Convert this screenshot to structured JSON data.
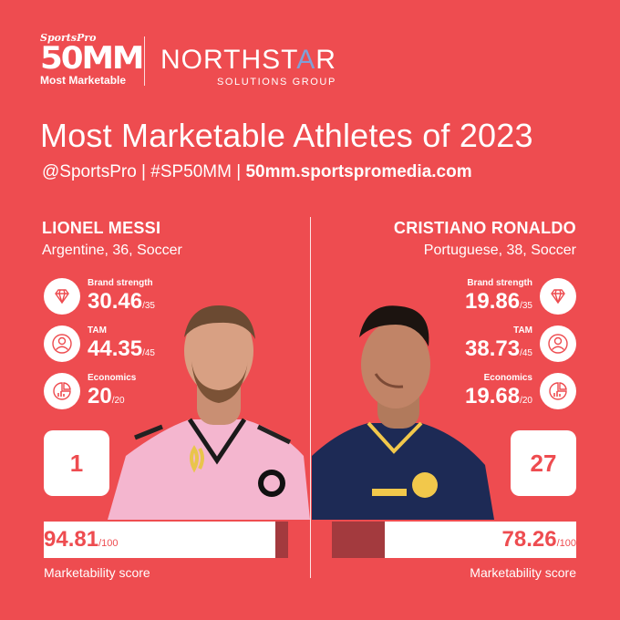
{
  "header": {
    "logo_brand": "SportsPro",
    "logo_number": "50MM",
    "logo_tagline": "Most Marketable",
    "partner_name_pre": "NORTHST",
    "partner_name_star": "A",
    "partner_name_post": "R",
    "partner_sub": "SOLUTIONS GROUP"
  },
  "title": "Most Marketable Athletes of 2023",
  "subtitle": {
    "handles": "@SportsPro | #SP50MM | ",
    "url": "50mm.sportspromedia.com"
  },
  "players": [
    {
      "name": "LIONEL MESSI",
      "info": "Argentine, 36, Soccer",
      "rank": "1",
      "stats": [
        {
          "label": "Brand strength",
          "value": "30.46",
          "max": "/35",
          "icon": "diamond-icon"
        },
        {
          "label": "TAM",
          "value": "44.35",
          "max": "/45",
          "icon": "person-icon"
        },
        {
          "label": "Economics",
          "value": "20",
          "max": "/20",
          "icon": "chart-icon"
        }
      ],
      "score": "94.81",
      "score_max": "/100",
      "score_fraction": 0.9481,
      "score_label": "Marketability score"
    },
    {
      "name": "CRISTIANO RONALDO",
      "info": "Portuguese, 38, Soccer",
      "rank": "27",
      "stats": [
        {
          "label": "Brand strength",
          "value": "19.86",
          "max": "/35",
          "icon": "diamond-icon"
        },
        {
          "label": "TAM",
          "value": "38.73",
          "max": "/45",
          "icon": "person-icon"
        },
        {
          "label": "Economics",
          "value": "19.68",
          "max": "/20",
          "icon": "chart-icon"
        }
      ],
      "score": "78.26",
      "score_max": "/100",
      "score_fraction": 0.7826,
      "score_label": "Marketability score"
    }
  ],
  "colors": {
    "background": "#ee4c50",
    "accent_dark": "#a33a3e",
    "white": "#ffffff",
    "messi_shirt": "#f4b6cf",
    "ronaldo_shirt": "#1d2a55"
  }
}
